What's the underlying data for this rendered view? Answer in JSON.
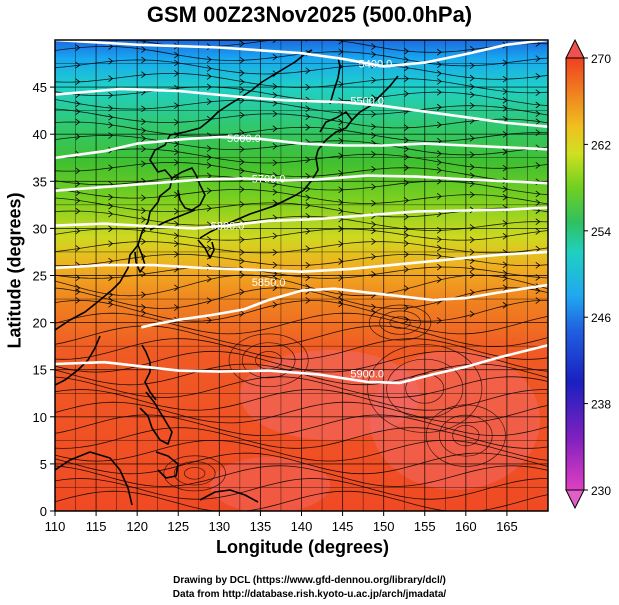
{
  "title": "GSM 00Z23Nov2025 (500.0hPa)",
  "x_axis": {
    "label": "Longitude (degrees)",
    "range": [
      110,
      170
    ],
    "ticks": [
      "110",
      "115",
      "120",
      "125",
      "130",
      "135",
      "140",
      "145",
      "150",
      "155",
      "160",
      "165"
    ]
  },
  "y_axis": {
    "label": "Latitude  (degrees)",
    "range": [
      0,
      50
    ],
    "ticks": [
      "0",
      "5",
      "10",
      "15",
      "20",
      "25",
      "30",
      "35",
      "40",
      "45"
    ]
  },
  "colorbar": {
    "range": [
      230,
      270
    ],
    "ticks": [
      "230",
      "238",
      "246",
      "254",
      "262",
      "270"
    ],
    "colors": [
      "#e040c0",
      "#8020c0",
      "#2020c0",
      "#2060e0",
      "#20a0f0",
      "#20d0c0",
      "#20c060",
      "#60d020",
      "#c0e020",
      "#f0c020",
      "#f08020",
      "#f04020"
    ]
  },
  "contours": [
    {
      "label": "5400.0",
      "label_lon": 149,
      "label_lat": 47.5,
      "points": [
        [
          110,
          50
        ],
        [
          120,
          49.5
        ],
        [
          130,
          49.2
        ],
        [
          140,
          48.6
        ],
        [
          145,
          48
        ],
        [
          150,
          47.2
        ],
        [
          155,
          47.6
        ],
        [
          160,
          48.5
        ],
        [
          165,
          49.5
        ],
        [
          170,
          50
        ]
      ]
    },
    {
      "label": "5500.0",
      "label_lon": 148,
      "label_lat": 43.6,
      "points": [
        [
          110,
          44.2
        ],
        [
          118,
          44.8
        ],
        [
          125,
          44.6
        ],
        [
          132,
          44
        ],
        [
          138,
          43.6
        ],
        [
          145,
          43.4
        ],
        [
          150,
          43
        ],
        [
          155,
          42.4
        ],
        [
          160,
          41.8
        ],
        [
          165,
          41.2
        ],
        [
          170,
          40.8
        ]
      ]
    },
    {
      "label": "5600.0",
      "label_lon": 133,
      "label_lat": 39.6,
      "points": [
        [
          110,
          37.5
        ],
        [
          116,
          38.2
        ],
        [
          120,
          39
        ],
        [
          126,
          39.5
        ],
        [
          130,
          39.7
        ],
        [
          135,
          39.5
        ],
        [
          140,
          39
        ],
        [
          145,
          38.8
        ],
        [
          150,
          38.8
        ],
        [
          155,
          39
        ],
        [
          160,
          38.8
        ],
        [
          165,
          38.6
        ],
        [
          170,
          38.4
        ]
      ]
    },
    {
      "label": "5700.0",
      "label_lon": 136,
      "label_lat": 35.3,
      "points": [
        [
          110,
          34
        ],
        [
          116,
          34.4
        ],
        [
          122,
          34.8
        ],
        [
          128,
          35.2
        ],
        [
          133,
          35.3
        ],
        [
          138,
          35.1
        ],
        [
          142,
          35.2
        ],
        [
          148,
          35.6
        ],
        [
          154,
          35.5
        ],
        [
          160,
          35.2
        ],
        [
          165,
          35
        ],
        [
          170,
          34.8
        ]
      ]
    },
    {
      "label": "5800.0",
      "label_lon": 131,
      "label_lat": 30.3,
      "points": [
        [
          110,
          30.3
        ],
        [
          116,
          30.5
        ],
        [
          122,
          30.2
        ],
        [
          127,
          30
        ],
        [
          131,
          30.3
        ],
        [
          136,
          30.8
        ],
        [
          142,
          31
        ],
        [
          148,
          31.4
        ],
        [
          154,
          31.8
        ],
        [
          160,
          31.9
        ],
        [
          165,
          32
        ],
        [
          170,
          32.2
        ]
      ]
    },
    {
      "label": "5850.0",
      "label_lon": 136,
      "label_lat": 24.3,
      "points": [
        [
          110,
          25.8
        ],
        [
          116,
          26.1
        ],
        [
          122,
          26.1
        ],
        [
          128,
          25.8
        ],
        [
          134,
          25.6
        ],
        [
          140,
          25.4
        ],
        [
          146,
          25.7
        ],
        [
          152,
          26.2
        ],
        [
          158,
          26.7
        ],
        [
          164,
          27.2
        ],
        [
          170,
          27.5
        ]
      ]
    },
    {
      "label": "",
      "label_lon": 0,
      "label_lat": 0,
      "points": [
        [
          120.5,
          19.5
        ],
        [
          122,
          19.8
        ],
        [
          125,
          20.3
        ],
        [
          129,
          20.8
        ],
        [
          133,
          21.4
        ],
        [
          136,
          22.4
        ],
        [
          140,
          23.4
        ],
        [
          144,
          23.6
        ],
        [
          148,
          23.2
        ],
        [
          152,
          22.8
        ],
        [
          156,
          22.4
        ],
        [
          160,
          22.6
        ],
        [
          164,
          23.2
        ],
        [
          170,
          24
        ]
      ]
    },
    {
      "label": "5900.0",
      "label_lon": 148,
      "label_lat": 14.6,
      "points": [
        [
          110,
          15.6
        ],
        [
          116,
          15.8
        ],
        [
          120,
          15.4
        ],
        [
          125,
          14.9
        ],
        [
          130,
          14.8
        ],
        [
          136,
          14.9
        ],
        [
          142,
          14.5
        ],
        [
          148,
          13.7
        ],
        [
          152,
          13.6
        ],
        [
          156,
          14.5
        ],
        [
          160,
          15.3
        ],
        [
          164,
          16.3
        ],
        [
          170,
          17.6
        ]
      ]
    }
  ],
  "colors": {
    "contour": "#ffffff",
    "coastline": "#000000",
    "grid": "#000000",
    "streamline": "#000000"
  }
}
